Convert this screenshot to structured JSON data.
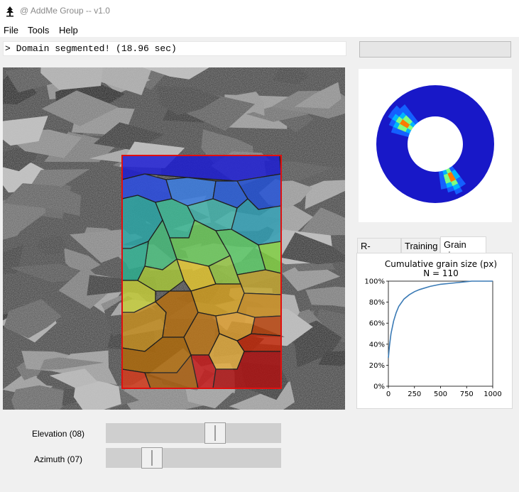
{
  "window": {
    "title": "@ AddMe Group -- v1.0",
    "icon": "tree-icon"
  },
  "menu": [
    {
      "label": "File"
    },
    {
      "label": "Tools"
    },
    {
      "label": "Help"
    }
  ],
  "status": {
    "text": "> Domain segmented! (18.96 sec)",
    "progress": 0
  },
  "polar_plot": {
    "description_colors": [
      "#1a1ad6",
      "#00a0ff",
      "#ffd400",
      "#ff2a00"
    ]
  },
  "tabs": [
    {
      "label": "R-Pattern",
      "active": false
    },
    {
      "label": "Training",
      "active": false
    },
    {
      "label": "Grain size",
      "active": true
    }
  ],
  "chart_data": {
    "type": "line",
    "title": "Cumulative grain size (px)",
    "subtitle": "N = 110",
    "xlabel": "",
    "ylabel": "",
    "xlim": [
      0,
      1000
    ],
    "ylim": [
      0,
      100
    ],
    "x_ticks": [
      "0",
      "250",
      "500",
      "750",
      "1000"
    ],
    "y_ticks": [
      "0%",
      "20%",
      "40%",
      "60%",
      "80%",
      "100%"
    ],
    "series": [
      {
        "color": "#3a7ab5",
        "x": [
          0,
          10,
          25,
          50,
          75,
          100,
          150,
          200,
          250,
          300,
          400,
          500,
          600,
          700,
          750,
          800,
          1000
        ],
        "y": [
          27,
          38,
          50,
          62,
          70,
          76,
          83,
          87,
          90,
          92,
          95,
          97,
          98,
          99,
          99.5,
          100,
          100
        ]
      }
    ]
  },
  "sliders": [
    {
      "label": "Elevation (08)",
      "value": 0.64
    },
    {
      "label": "Azimuth (07)",
      "value": 0.23
    }
  ]
}
